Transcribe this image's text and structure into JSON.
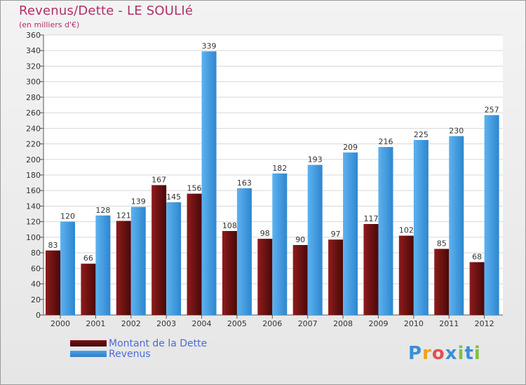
{
  "header": {
    "title": "Revenus/Dette - LE SOULIé",
    "subtitle": "(en milliers d'€)"
  },
  "legend": {
    "debt_label": "Montant de la Dette",
    "revenue_label": "Revenus"
  },
  "logo": {
    "text": "Proxiti"
  },
  "colors": {
    "debt": "#7a1414",
    "revenue": "#4aa3e6",
    "title": "#b0306a",
    "legend_text": "#4a6ad8"
  },
  "chart_data": {
    "type": "bar",
    "title": "Revenus/Dette - LE SOULIé",
    "ylabel": "(en milliers d'€)",
    "xlabel": "",
    "categories": [
      "2000",
      "2001",
      "2002",
      "2003",
      "2004",
      "2005",
      "2006",
      "2007",
      "2008",
      "2009",
      "2010",
      "2011",
      "2012"
    ],
    "series": [
      {
        "name": "Montant de la Dette",
        "values": [
          83,
          66,
          121,
          167,
          156,
          108,
          98,
          90,
          97,
          117,
          102,
          85,
          68
        ]
      },
      {
        "name": "Revenus",
        "values": [
          120,
          128,
          139,
          145,
          339,
          163,
          182,
          193,
          209,
          216,
          225,
          230,
          257
        ]
      }
    ],
    "ylim": [
      0,
      360
    ],
    "yticks": [
      0,
      20,
      40,
      60,
      80,
      100,
      120,
      140,
      160,
      180,
      200,
      220,
      240,
      260,
      280,
      300,
      320,
      340,
      360
    ],
    "grid": true,
    "legend_position": "bottom-left"
  }
}
